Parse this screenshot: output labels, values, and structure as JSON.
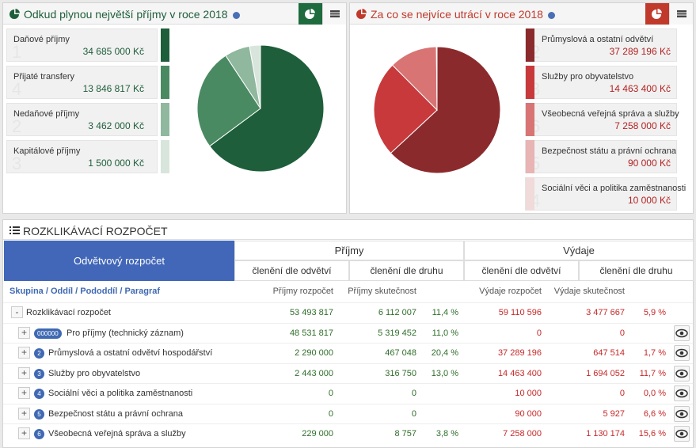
{
  "income": {
    "title": "Odkud plynou největší příjmy v roce 2018",
    "items": [
      {
        "name": "Daňové příjmy",
        "code": "1",
        "value": 34685000,
        "value_label": "34 685 000 Kč",
        "color": "#1e5e3a"
      },
      {
        "name": "Přijaté transfery",
        "code": "4",
        "value": 13846817,
        "value_label": "13 846 817 Kč",
        "color": "#4a8a62"
      },
      {
        "name": "Nedaňové příjmy",
        "code": "2",
        "value": 3462000,
        "value_label": "3 462 000 Kč",
        "color": "#8fb89e"
      },
      {
        "name": "Kapitálové příjmy",
        "code": "3",
        "value": 1500000,
        "value_label": "1 500 000 Kč",
        "color": "#d8e5dc"
      }
    ]
  },
  "expense": {
    "title": "Za co se nejvíce utrácí v roce 2018",
    "items": [
      {
        "name": "Průmyslová a ostatní odvětví",
        "code": "2",
        "value": 37289196,
        "value_label": "37 289 196 Kč",
        "color": "#8b2a2c"
      },
      {
        "name": "Služby pro obyvatelstvo",
        "code": "3",
        "value": 14463400,
        "value_label": "14 463 400 Kč",
        "color": "#c8393c"
      },
      {
        "name": "Všeobecná veřejná správa a služby",
        "code": "6",
        "value": 7258000,
        "value_label": "7 258 000 Kč",
        "color": "#d87574"
      },
      {
        "name": "Bezpečnost státu a právní ochrana",
        "code": "5",
        "value": 90000,
        "value_label": "90 000 Kč",
        "color": "#e8b4b4"
      },
      {
        "name": "Sociální věci a politika zaměstnanosti",
        "code": "4",
        "value": 10000,
        "value_label": "10 000 Kč",
        "color": "#f0dada"
      }
    ]
  },
  "budget": {
    "title": "ROZKLIKÁVACÍ ROZPOČET",
    "head": {
      "first": "Odvětvový rozpočet",
      "income": "Příjmy",
      "expense": "Výdaje",
      "sub": [
        "členění dle odvětví",
        "členění dle druhu",
        "členění dle odvětví",
        "členění dle druhu"
      ]
    },
    "crumbs": "Skupina / Oddíl / Pododdíl / Paragraf",
    "columns": [
      "Příjmy rozpočet",
      "Příjmy skutečnost",
      "Výdaje rozpočet",
      "Výdaje skutečnost"
    ],
    "rows": [
      {
        "toggle": "-",
        "name": "Rozklikávací rozpočet",
        "inc_budget": "53 493 817",
        "inc_actual": "6 112 007",
        "inc_pct": "11,4 %",
        "exp_budget": "59 110 596",
        "exp_actual": "3 477 667",
        "exp_pct": "5,9 %"
      },
      {
        "toggle": "+",
        "code": "000000",
        "name": "Pro příjmy (technický záznam)",
        "inc_budget": "48 531 817",
        "inc_actual": "5 319 452",
        "inc_pct": "11,0 %",
        "exp_budget": "0",
        "exp_actual": "0"
      },
      {
        "toggle": "+",
        "code": "2",
        "name": "Průmyslová a ostatní odvětví hospodářství",
        "inc_budget": "2 290 000",
        "inc_actual": "467 048",
        "inc_pct": "20,4 %",
        "exp_budget": "37 289 196",
        "exp_actual": "647 514",
        "exp_pct": "1,7 %"
      },
      {
        "toggle": "+",
        "code": "3",
        "name": "Služby pro obyvatelstvo",
        "inc_budget": "2 443 000",
        "inc_actual": "316 750",
        "inc_pct": "13,0 %",
        "exp_budget": "14 463 400",
        "exp_actual": "1 694 052",
        "exp_pct": "11,7 %"
      },
      {
        "toggle": "+",
        "code": "4",
        "name": "Sociální věci a politika zaměstnanosti",
        "inc_budget": "0",
        "inc_actual": "0",
        "exp_budget": "10 000",
        "exp_actual": "0",
        "exp_pct": "0,0 %"
      },
      {
        "toggle": "+",
        "code": "5",
        "name": "Bezpečnost státu a právní ochrana",
        "inc_budget": "0",
        "inc_actual": "0",
        "exp_budget": "90 000",
        "exp_actual": "5 927",
        "exp_pct": "6,6 %"
      },
      {
        "toggle": "+",
        "code": "6",
        "name": "Všeobecná veřejná správa a služby",
        "inc_budget": "229 000",
        "inc_actual": "8 757",
        "inc_pct": "3,8 %",
        "exp_budget": "7 258 000",
        "exp_actual": "1 130 174",
        "exp_pct": "15,6 %"
      }
    ]
  }
}
